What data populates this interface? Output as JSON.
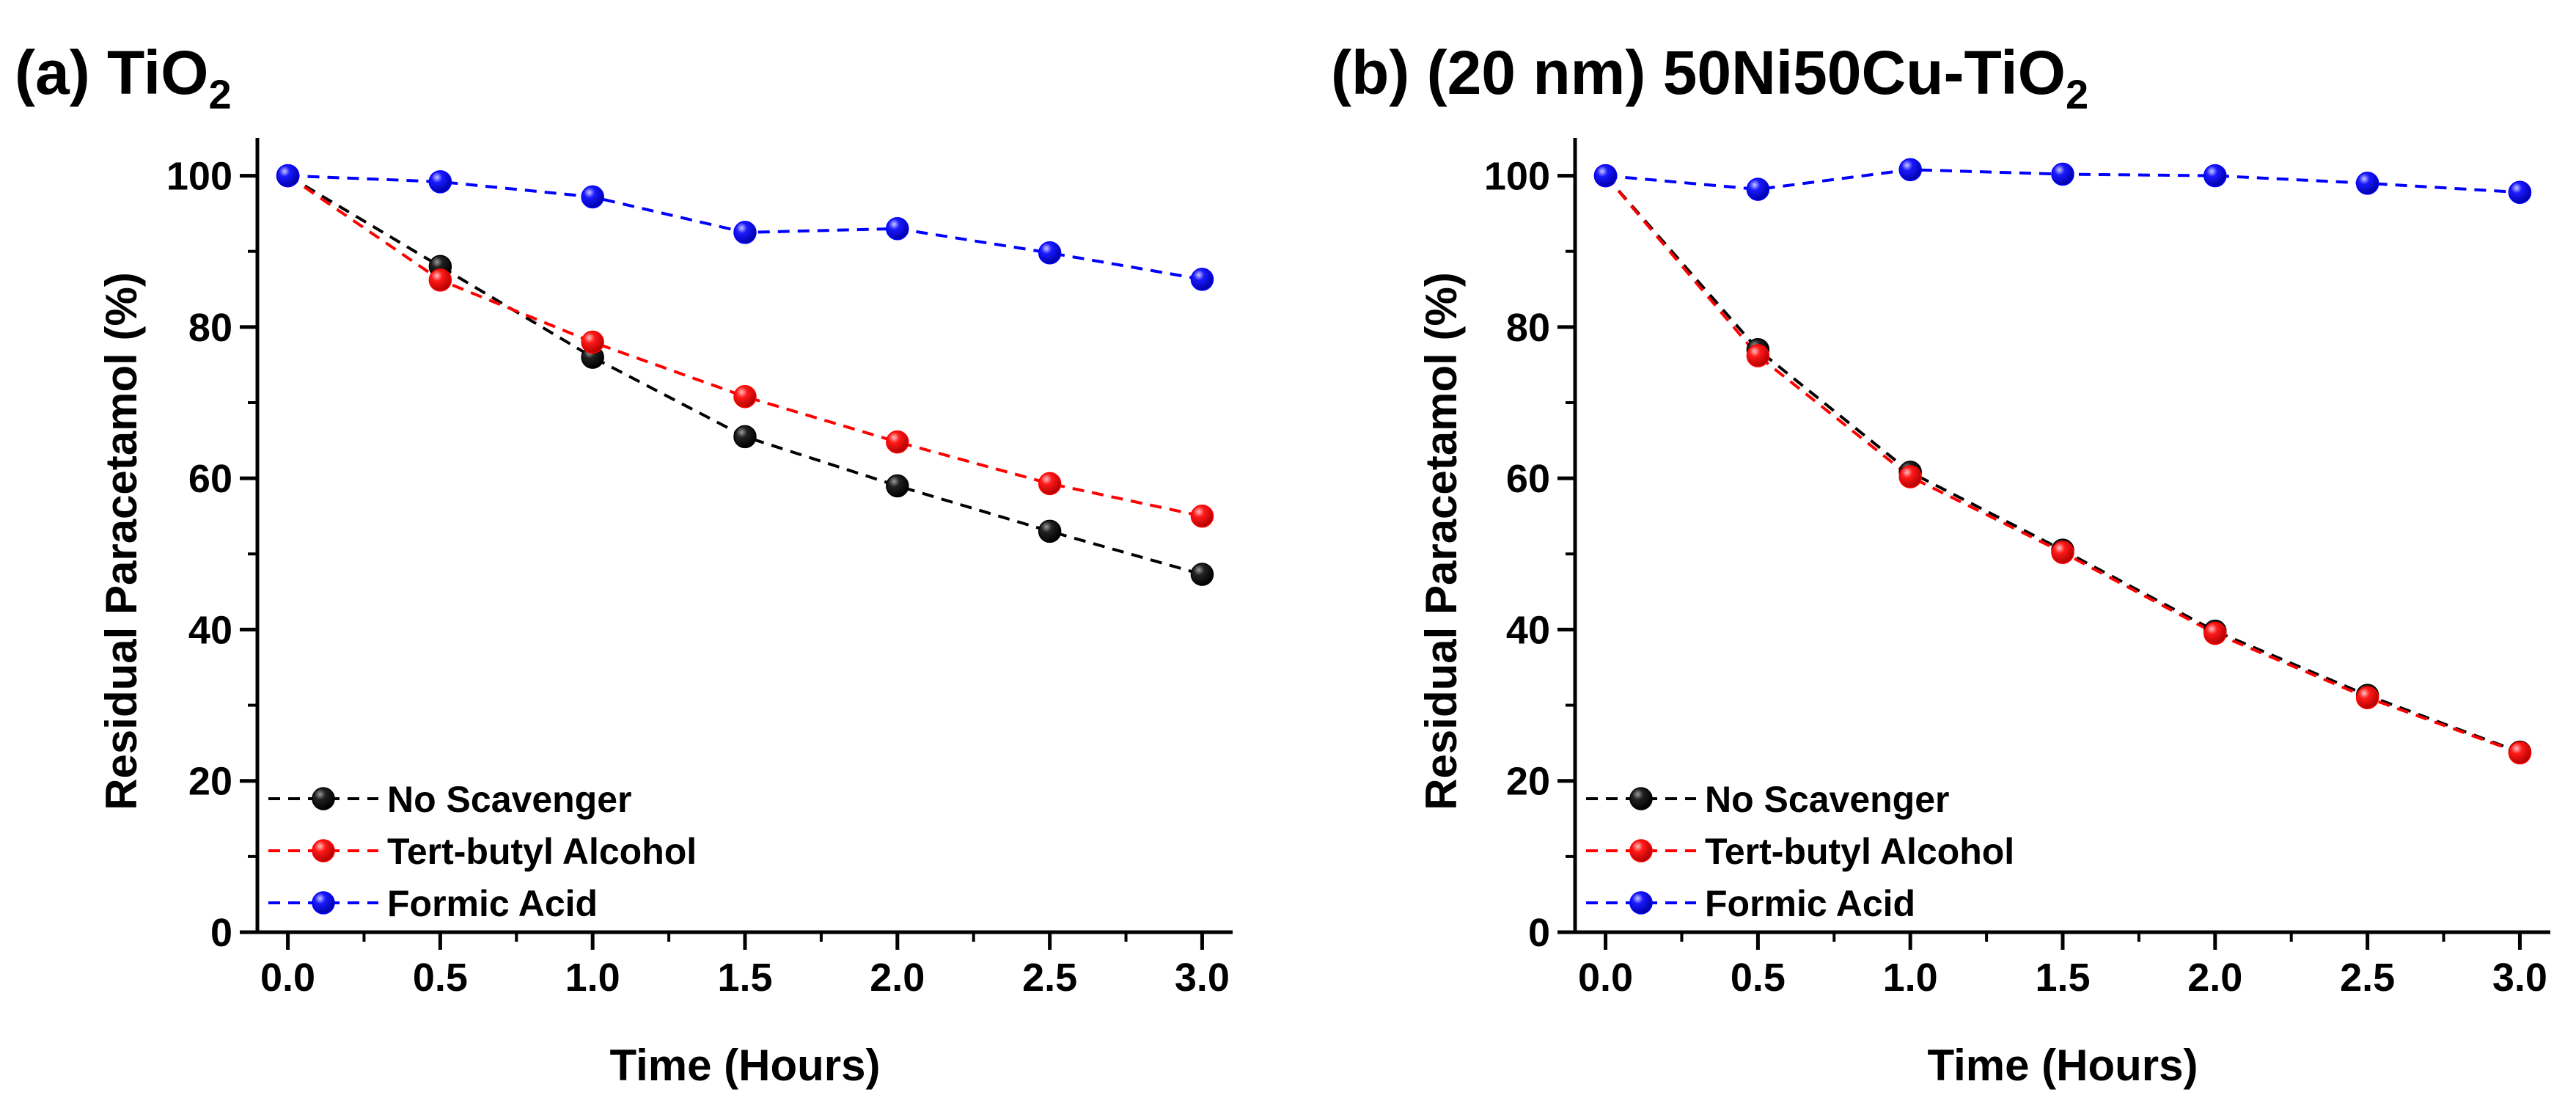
{
  "chart_data": [
    {
      "type": "line",
      "title": "(a) TiO",
      "title_sub": "2",
      "xlabel": "Time (Hours)",
      "ylabel": "Residual Paracetamol (%)",
      "xlim": [
        -0.1,
        3.1
      ],
      "ylim": [
        0,
        105
      ],
      "x_ticks": [
        "0.0",
        "0.5",
        "1.0",
        "1.5",
        "2.0",
        "2.5",
        "3.0"
      ],
      "y_ticks": [
        "0",
        "20",
        "40",
        "60",
        "80",
        "100"
      ],
      "legend_position": "bottom-left",
      "x": [
        0,
        0.5,
        1.0,
        1.5,
        2.0,
        2.5,
        3.0
      ],
      "series": [
        {
          "name": "No Scavenger",
          "color": "#000000",
          "values": [
            100,
            88,
            76,
            65.5,
            59,
            53,
            47.3
          ]
        },
        {
          "name": "Tert-butyl Alcohol",
          "color": "#ff0000",
          "values": [
            100,
            86.2,
            78,
            70.8,
            64.8,
            59.3,
            55
          ]
        },
        {
          "name": "Formic Acid",
          "color": "#0000ff",
          "values": [
            100,
            99.2,
            97.2,
            92.5,
            93,
            89.8,
            86.3
          ]
        }
      ]
    },
    {
      "type": "line",
      "title": "(b) (20 nm) 50Ni50Cu-TiO",
      "title_sub": "2",
      "xlabel": "Time (Hours)",
      "ylabel": "Residual Paracetamol (%)",
      "xlim": [
        -0.1,
        3.1
      ],
      "ylim": [
        0,
        105
      ],
      "x_ticks": [
        "0.0",
        "0.5",
        "1.0",
        "1.5",
        "2.0",
        "2.5",
        "3.0"
      ],
      "y_ticks": [
        "0",
        "20",
        "40",
        "60",
        "80",
        "100"
      ],
      "legend_position": "bottom-left",
      "x": [
        0,
        0.5,
        1.0,
        1.5,
        2.0,
        2.5,
        3.0
      ],
      "series": [
        {
          "name": "No Scavenger",
          "color": "#000000",
          "values": [
            100,
            77,
            60.8,
            50.5,
            39.8,
            31.3,
            23.8
          ]
        },
        {
          "name": "Tert-butyl Alcohol",
          "color": "#ff0000",
          "values": [
            100,
            76.2,
            60.2,
            50.2,
            39.5,
            31,
            23.7
          ]
        },
        {
          "name": "Formic Acid",
          "color": "#0000ff",
          "values": [
            100,
            98.2,
            100.8,
            100.2,
            100,
            99,
            97.8
          ]
        }
      ]
    }
  ]
}
